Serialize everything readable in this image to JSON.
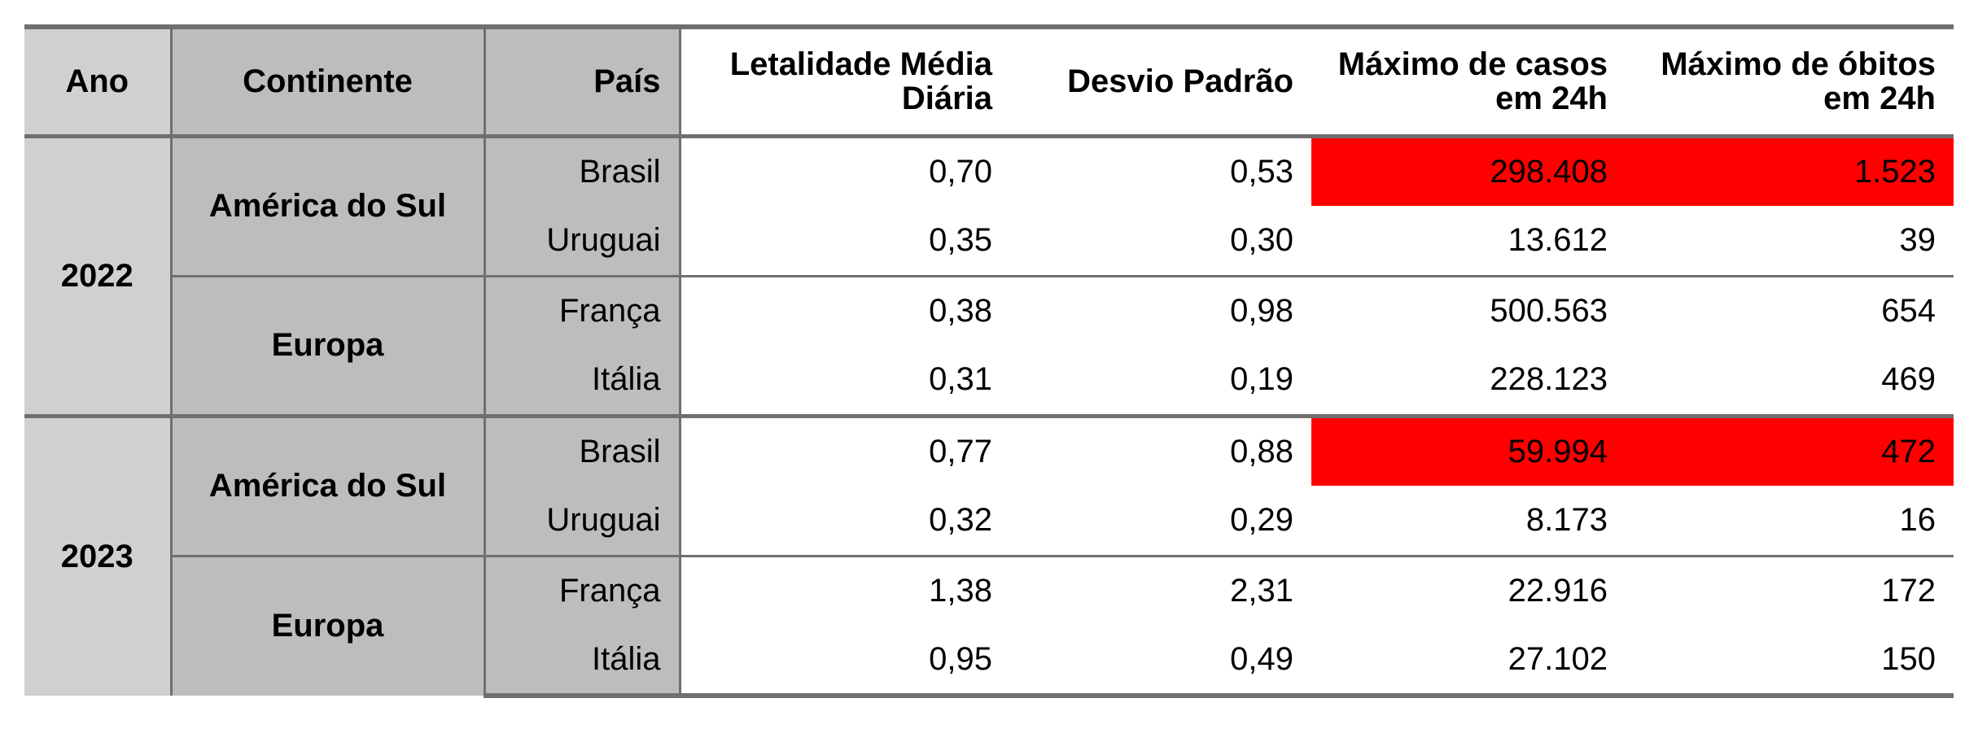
{
  "headers": {
    "ano": "Ano",
    "continente": "Continente",
    "pais": "País",
    "letalidade": "Letalidade Média Diária",
    "desvio": "Desvio Padrão",
    "casos": "Máximo de casos em 24h",
    "obitos": "Máximo de óbitos em 24h"
  },
  "highlight_color": "#ff0000",
  "years": [
    {
      "year": "2022",
      "continents": [
        {
          "name": "América do Sul",
          "countries": [
            {
              "pais": "Brasil",
              "letalidade": "0,70",
              "desvio": "0,53",
              "casos": "298.408",
              "obitos": "1.523",
              "highlight": true
            },
            {
              "pais": "Uruguai",
              "letalidade": "0,35",
              "desvio": "0,30",
              "casos": "13.612",
              "obitos": "39",
              "highlight": false
            }
          ]
        },
        {
          "name": "Europa",
          "countries": [
            {
              "pais": "França",
              "letalidade": "0,38",
              "desvio": "0,98",
              "casos": "500.563",
              "obitos": "654",
              "highlight": false
            },
            {
              "pais": "Itália",
              "letalidade": "0,31",
              "desvio": "0,19",
              "casos": "228.123",
              "obitos": "469",
              "highlight": false
            }
          ]
        }
      ]
    },
    {
      "year": "2023",
      "continents": [
        {
          "name": "América do Sul",
          "countries": [
            {
              "pais": "Brasil",
              "letalidade": "0,77",
              "desvio": "0,88",
              "casos": "59.994",
              "obitos": "472",
              "highlight": true
            },
            {
              "pais": "Uruguai",
              "letalidade": "0,32",
              "desvio": "0,29",
              "casos": "8.173",
              "obitos": "16",
              "highlight": false
            }
          ]
        },
        {
          "name": "Europa",
          "countries": [
            {
              "pais": "França",
              "letalidade": "1,38",
              "desvio": "2,31",
              "casos": "22.916",
              "obitos": "172",
              "highlight": false
            },
            {
              "pais": "Itália",
              "letalidade": "0,95",
              "desvio": "0,49",
              "casos": "27.102",
              "obitos": "150",
              "highlight": false
            }
          ]
        }
      ]
    }
  ]
}
